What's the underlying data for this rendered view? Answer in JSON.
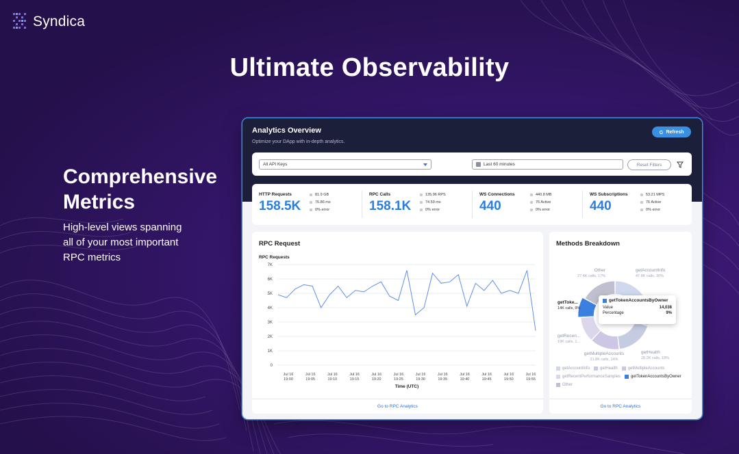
{
  "brand": {
    "name": "Syndica",
    "logo_icon": "syndica-logo-icon"
  },
  "hero": {
    "headline": "Ultimate Observability"
  },
  "feature": {
    "title_line1": "Comprehensive",
    "title_line2": "Metrics",
    "desc_line1": "High-level views spanning",
    "desc_line2": "all of your most important",
    "desc_line3": "RPC metrics"
  },
  "dashboard": {
    "title": "Analytics Overview",
    "subtitle": "Optimize your DApp with in-depth analytics.",
    "refresh_label": "Refresh",
    "filters": {
      "api_keys_value": "All API Keys",
      "time_range_value": "Last 60 minutes",
      "reset_label": "Reset Filters",
      "filter_icon": "funnel-icon"
    },
    "metrics": [
      {
        "label": "HTTP Requests",
        "value": "158.5K",
        "stat1": "81.9 GB",
        "stat2": "76.86 ms",
        "stat3": "0% error"
      },
      {
        "label": "RPC Calls",
        "value": "158.1K",
        "stat1": "135.96 RPS",
        "stat2": "74.59 ms",
        "stat3": "0% error"
      },
      {
        "label": "WS Connections",
        "value": "440",
        "stat1": "440.8 MB",
        "stat2": "76 Active",
        "stat3": "0% error"
      },
      {
        "label": "WS Subscriptions",
        "value": "440",
        "stat1": "53.21 MPS",
        "stat2": "76 Active",
        "stat3": "0% error"
      }
    ],
    "rpc_panel": {
      "title": "RPC Request",
      "link": "Go to RPC Analytics"
    },
    "methods_panel": {
      "title": "Methods Breakdown",
      "link": "Go to RPC Analytics",
      "slice_labels": [
        {
          "name": "getAccountInfo",
          "detail": "47.8K calls, 30%"
        },
        {
          "name": "getHealth",
          "detail": "28.2K calls, 18%"
        },
        {
          "name": "getMultipleAccounts",
          "detail": "21.8K calls, 14%"
        },
        {
          "name": "getRecen...",
          "detail": "19K calls, 1..."
        },
        {
          "name": "getToke...",
          "detail": "14K calls, 9%"
        },
        {
          "name": "Other",
          "detail": "27.4K calls, 17%"
        }
      ],
      "legend": [
        "getAccountInfo",
        "getHealth",
        "getMultipleAccounts",
        "getRecentPerformanceSamples",
        "getTokenAccountsByOwner",
        "Other"
      ],
      "tooltip": {
        "name": "getTokenAccountsByOwner",
        "value_label": "Value",
        "value": "14,038",
        "pct_label": "Percentage",
        "pct": "9%"
      }
    }
  },
  "chart_data": [
    {
      "type": "line",
      "title": "RPC Requests",
      "xlabel": "Time (UTC)",
      "ylabel": "",
      "ylim": [
        0,
        7000
      ],
      "yticks": [
        "0",
        "1K",
        "2K",
        "3K",
        "4K",
        "5K",
        "6K",
        "7K"
      ],
      "xticks": [
        [
          "Jul 16",
          "19:00"
        ],
        [
          "Jul 16",
          "19:05"
        ],
        [
          "Jul 16",
          "19:10"
        ],
        [
          "Jul 16",
          "19:15"
        ],
        [
          "Jul 16",
          "19:20"
        ],
        [
          "Jul 16",
          "19:25"
        ],
        [
          "Jul 16",
          "19:30"
        ],
        [
          "Jul 16",
          "19:35"
        ],
        [
          "Jul 16",
          "19:40"
        ],
        [
          "Jul 16",
          "19:45"
        ],
        [
          "Jul 16",
          "19:50"
        ],
        [
          "Jul 16",
          "19:55"
        ]
      ],
      "grid": true,
      "values": [
        4900,
        4700,
        5300,
        5600,
        5500,
        4000,
        4900,
        5500,
        4700,
        5200,
        5100,
        5500,
        5800,
        4800,
        4500,
        6600,
        3500,
        4000,
        6400,
        5700,
        5800,
        6300,
        4100,
        5700,
        5200,
        5900,
        5000,
        5200,
        5000,
        6600,
        2400
      ],
      "color": "#5b8fe8"
    },
    {
      "type": "pie",
      "title": "Methods Breakdown",
      "categories": [
        "getAccountInfo",
        "getHealth",
        "getMultipleAccounts",
        "getRecentPerformanceSamples",
        "getTokenAccountsByOwner",
        "Other"
      ],
      "values": [
        30,
        18,
        14,
        12,
        9,
        17
      ],
      "colors": [
        "#cfd8ee",
        "#c5cbe0",
        "#cdc6e4",
        "#dcd6ea",
        "#3b7fe0",
        "#bfbfcf"
      ]
    }
  ]
}
